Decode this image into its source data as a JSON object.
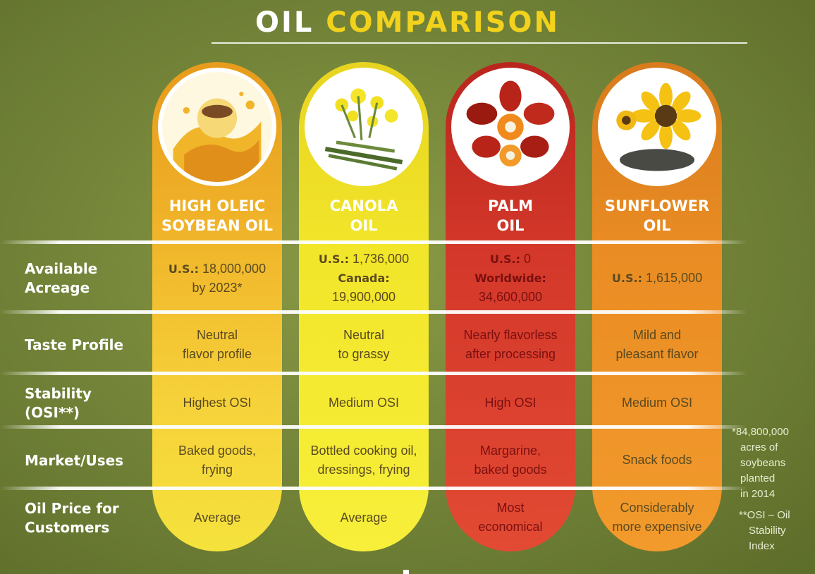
{
  "title": {
    "part1": "OIL",
    "part2": "COMPARISON"
  },
  "colors": {
    "title_accent": "#f2d21c",
    "soybean": "#f0b42a",
    "canola": "#f2e62a",
    "palm": "#d4382a",
    "sunflower": "#ea8d24",
    "background": "#75863a"
  },
  "oils": [
    {
      "name_line1": "HIGH OLEIC",
      "name_line2": "SOYBEAN OIL",
      "image_icon": "soybean-oil-splash-icon"
    },
    {
      "name_line1": "CANOLA",
      "name_line2": "OIL",
      "image_icon": "canola-flower-icon"
    },
    {
      "name_line1": "PALM",
      "name_line2": "OIL",
      "image_icon": "palm-fruit-icon"
    },
    {
      "name_line1": "SUNFLOWER",
      "name_line2": "OIL",
      "image_icon": "sunflower-icon"
    }
  ],
  "rows": [
    {
      "label_line1": "Available",
      "label_line2": "Acreage"
    },
    {
      "label_line1": "Taste Profile",
      "label_line2": ""
    },
    {
      "label_line1": "Stability",
      "label_line2": "(OSI**)"
    },
    {
      "label_line1": "Market/Uses",
      "label_line2": ""
    },
    {
      "label_line1": "Oil Price for",
      "label_line2": "Customers"
    }
  ],
  "acreage": {
    "soybean": {
      "k1": "U.S.:",
      "v1": " 18,000,000",
      "l2": "by 2023*"
    },
    "canola": {
      "k1": "U.S.:",
      "v1": " 1,736,000",
      "k2": "Canada:",
      "v2": "19,900,000"
    },
    "palm": {
      "k1": "U.S.:",
      "v1": " 0",
      "k2": "Worldwide:",
      "v2": "34,600,000"
    },
    "sunflower": {
      "k1": "U.S.:",
      "v1": " 1,615,000"
    }
  },
  "taste": [
    {
      "l1": "Neutral",
      "l2": "flavor profile"
    },
    {
      "l1": "Neutral",
      "l2": "to grassy"
    },
    {
      "l1": "Nearly flavorless",
      "l2": "after processing"
    },
    {
      "l1": "Mild and",
      "l2": "pleasant flavor"
    }
  ],
  "stability": [
    "Highest OSI",
    "Medium OSI",
    "High OSI",
    "Medium OSI"
  ],
  "uses": [
    {
      "l1": "Baked goods,",
      "l2": "frying"
    },
    {
      "l1": "Bottled cooking oil,",
      "l2": "dressings, frying"
    },
    {
      "l1": "Margarine,",
      "l2": "baked goods"
    },
    {
      "l1": "Snack foods",
      "l2": ""
    }
  ],
  "price": [
    {
      "l1": "Average",
      "l2": ""
    },
    {
      "l1": "Average",
      "l2": ""
    },
    {
      "l1": "Most",
      "l2": "economical"
    },
    {
      "l1": "Considerably",
      "l2": "more expensive"
    }
  ],
  "footnotes": {
    "acreage": [
      "*84,800,000",
      "acres of",
      "soybeans",
      "planted",
      "in 2014"
    ],
    "osi": [
      "**OSI – Oil",
      "Stability",
      "Index"
    ]
  }
}
